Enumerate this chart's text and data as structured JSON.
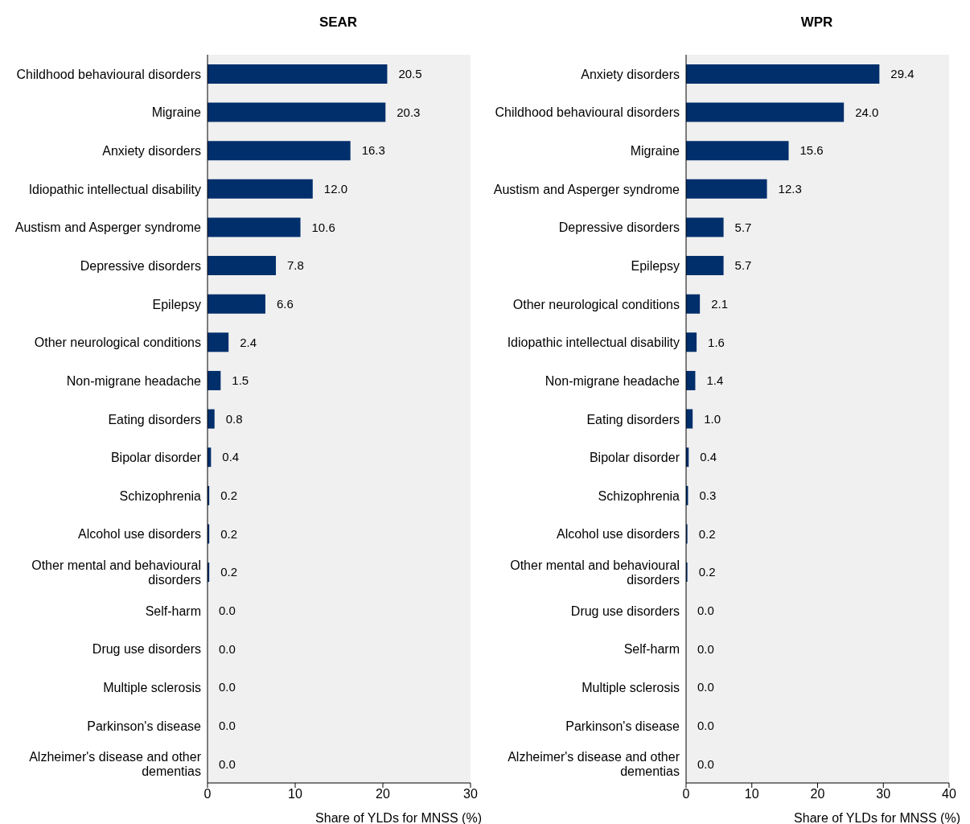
{
  "chart_data": [
    {
      "type": "bar",
      "orientation": "horizontal",
      "title": "SEAR",
      "xlabel": "Share of YLDs for MNSS (%)",
      "categories": [
        "Childhood behavioural disorders",
        "Migraine",
        "Anxiety disorders",
        "Idiopathic intellectual disability",
        "Austism and Asperger syndrome",
        "Depressive disorders",
        "Epilepsy",
        "Other neurological conditions",
        "Non-migrane headache",
        "Eating disorders",
        "Bipolar disorder",
        "Schizophrenia",
        "Alcohol use disorders",
        "Other mental and behavioural disorders",
        "Self-harm",
        "Drug use disorders",
        "Multiple sclerosis",
        "Parkinson's disease",
        "Alzheimer's disease and other dementias"
      ],
      "series": [
        {
          "color": "#002f6c",
          "values": [
            20.5,
            20.3,
            16.3,
            12.0,
            10.6,
            7.8,
            6.6,
            2.4,
            1.5,
            0.8,
            0.4,
            0.2,
            0.2,
            0.2,
            0,
            0,
            0,
            0,
            0
          ],
          "value_labels": [
            "20.5",
            "20.3",
            "16.3",
            "12.0",
            "10.6",
            "7.8",
            "6.6",
            "2.4",
            "1.5",
            "0.8",
            "0.4",
            "0.2",
            "0.2",
            "0.2",
            "0.0",
            "0.0",
            "0.0",
            "0.0",
            "0.0"
          ]
        }
      ],
      "xlim": [
        0,
        30
      ],
      "xticks": [
        0,
        10,
        20,
        30
      ]
    },
    {
      "type": "bar",
      "orientation": "horizontal",
      "title": "WPR",
      "xlabel": "Share of YLDs for MNSS (%)",
      "categories": [
        "Anxiety disorders",
        "Childhood behavioural disorders",
        "Migraine",
        "Austism and Asperger syndrome",
        "Depressive disorders",
        "Epilepsy",
        "Other neurological conditions",
        "Idiopathic intellectual disability",
        "Non-migrane headache",
        "Eating disorders",
        "Bipolar disorder",
        "Schizophrenia",
        "Alcohol use disorders",
        "Other mental and behavioural disorders",
        "Drug use disorders",
        "Self-harm",
        "Multiple sclerosis",
        "Parkinson's disease",
        "Alzheimer's disease and other dementias"
      ],
      "series": [
        {
          "color": "#002f6c",
          "values": [
            29.4,
            24.0,
            15.6,
            12.3,
            5.7,
            5.7,
            2.1,
            1.6,
            1.4,
            1.0,
            0.4,
            0.3,
            0.2,
            0.2,
            0,
            0,
            0,
            0,
            0
          ],
          "value_labels": [
            "29.4",
            "24.0",
            "15.6",
            "12.3",
            "5.7",
            "5.7",
            "2.1",
            "1.6",
            "1.4",
            "1.0",
            "0.4",
            "0.3",
            "0.2",
            "0.2",
            "0.0",
            "0.0",
            "0.0",
            "0.0",
            "0.0"
          ]
        }
      ],
      "xlim": [
        0,
        40
      ],
      "xticks": [
        0,
        10,
        20,
        30,
        40
      ]
    }
  ]
}
